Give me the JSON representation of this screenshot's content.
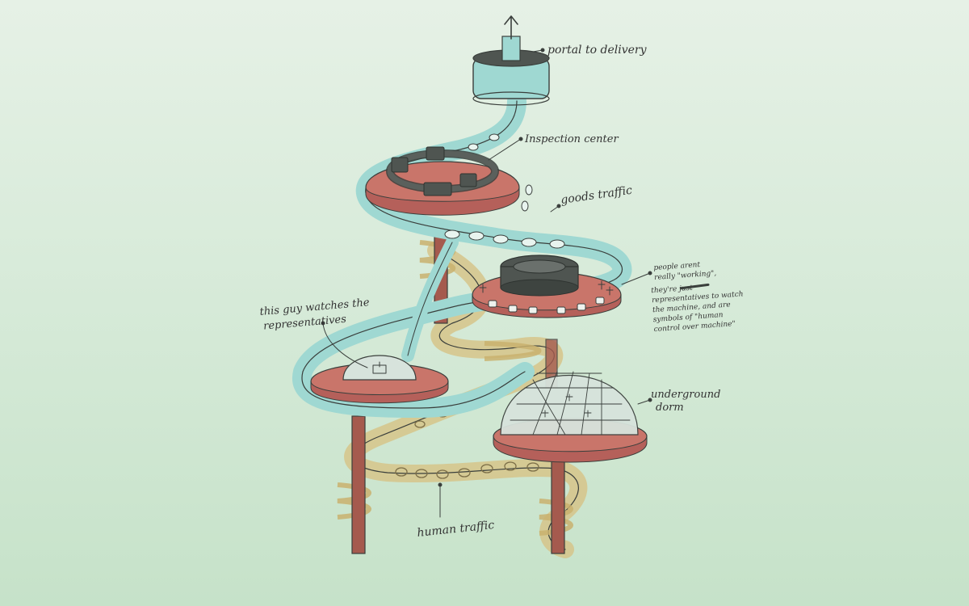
{
  "labels": {
    "portal": "portal to delivery",
    "inspection": "Inspection center",
    "goods": "goods traffic",
    "people_1": "people arent",
    "people_2": "really \"working\",",
    "people_3": "they're just",
    "people_4": "representatives to watch",
    "people_5": "the machine, and are",
    "people_6": "symbols of \"human",
    "people_7": "control over machine\"",
    "guy_1": "this guy watches the",
    "guy_2": "representatives",
    "dorm_1": "underground",
    "dorm_2": "dorm",
    "human": "human traffic"
  },
  "colors": {
    "goods_tube": "#9fd8d2",
    "human_tube": "#d6c48a",
    "platform": "#c9756a",
    "platform_dark": "#b5605a",
    "pillar": "#a55a4e",
    "ink": "#3a3f3c",
    "dome": "#d7e3dc",
    "machine": "#4f5551"
  }
}
